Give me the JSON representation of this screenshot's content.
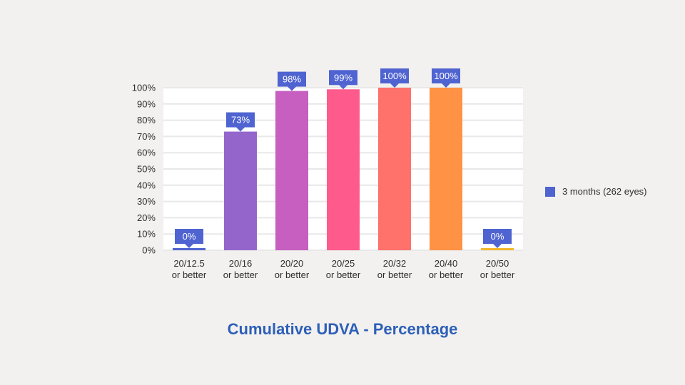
{
  "chart_data": {
    "type": "bar",
    "title": "Cumulative UDVA - Percentage",
    "categories": [
      [
        "20/12.5",
        "or better"
      ],
      [
        "20/16",
        "or better"
      ],
      [
        "20/20",
        "or better"
      ],
      [
        "20/25",
        "or better"
      ],
      [
        "20/32",
        "or better"
      ],
      [
        "20/40",
        "or better"
      ],
      [
        "20/50",
        "or better"
      ]
    ],
    "series": [
      {
        "name": "3 months (262 eyes)",
        "values": [
          0,
          73,
          98,
          99,
          100,
          100,
          0
        ],
        "data_labels": [
          "0%",
          "73%",
          "98%",
          "99%",
          "100%",
          "100%",
          "0%"
        ]
      }
    ],
    "bar_colors": [
      "#4f64d1",
      "#9466cc",
      "#c65fc0",
      "#fe5b8c",
      "#ff716b",
      "#ff9244",
      "#f2b72c"
    ],
    "label_color": "#4f64d1",
    "yticks": [
      "0%",
      "10%",
      "20%",
      "30%",
      "40%",
      "50%",
      "60%",
      "70%",
      "80%",
      "90%",
      "100%"
    ],
    "ylim": [
      0,
      100
    ],
    "grid": true,
    "legend_position": "right",
    "legend_color": "#4f64d1"
  }
}
